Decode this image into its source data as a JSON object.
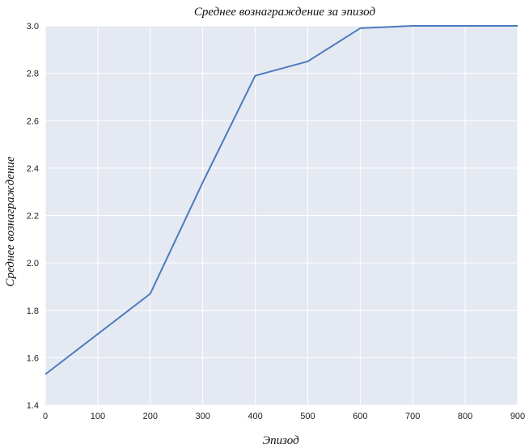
{
  "chart_data": {
    "type": "line",
    "title": "Среднее вознаграждение за эпизод",
    "xlabel": "Эпизод",
    "ylabel": "Среднее вознаграждение",
    "xlim": [
      0,
      900
    ],
    "ylim": [
      1.4,
      3.0
    ],
    "x_ticks": [
      0,
      100,
      200,
      300,
      400,
      500,
      600,
      700,
      800,
      900
    ],
    "y_ticks": [
      1.4,
      1.6,
      1.8,
      2.0,
      2.2,
      2.4,
      2.6,
      2.8,
      3.0
    ],
    "x_tick_labels": [
      "0",
      "100",
      "200",
      "300",
      "400",
      "500",
      "600",
      "700",
      "800",
      "900"
    ],
    "y_tick_labels": [
      "1.4",
      "1.6",
      "1.8",
      "2.0",
      "2.2",
      "2.4",
      "2.6",
      "2.8",
      "3.0"
    ],
    "grid": true,
    "series": [
      {
        "x": [
          0,
          100,
          200,
          300,
          400,
          500,
          600,
          700,
          800,
          900
        ],
        "y": [
          1.53,
          1.7,
          1.87,
          2.34,
          2.79,
          2.85,
          2.99,
          3.0,
          3.0,
          3.0
        ]
      }
    ],
    "colors": {
      "background": "#e5e9f2",
      "grid": "#ffffff",
      "line": "#4c7bbd"
    }
  }
}
